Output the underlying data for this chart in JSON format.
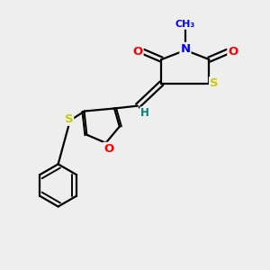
{
  "bg_color": "#eeeeee",
  "atom_colors": {
    "N": "#0000FF",
    "O": "#FF0000",
    "S": "#CCCC00",
    "H": "#008080",
    "C": "#000000"
  },
  "bond_color": "#000000",
  "font_size": 9.5
}
